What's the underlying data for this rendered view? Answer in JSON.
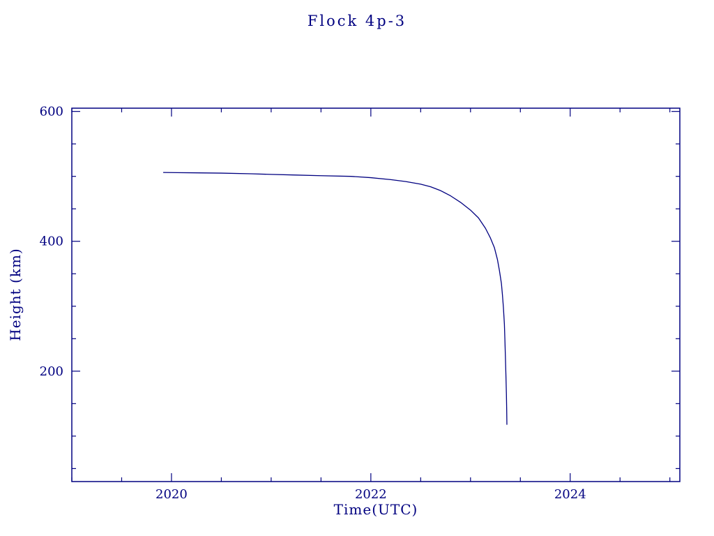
{
  "page": {
    "background": "#ffffff",
    "accent_color": "#000080"
  },
  "chart_data": {
    "type": "line",
    "title": "Flock 4p-3",
    "xlabel": "Time(UTC)",
    "ylabel": "Height (km)",
    "xlim": [
      2019.0,
      2025.1
    ],
    "ylim": [
      30,
      605
    ],
    "x_ticks": [
      2020,
      2022,
      2024
    ],
    "x_minor_step": 0.5,
    "y_ticks": [
      200,
      400,
      600
    ],
    "y_minor_step": 50,
    "grid": false,
    "legend": "none",
    "line_color": "#000080",
    "series": [
      {
        "name": "Flock 4p-3 height",
        "points": [
          [
            2019.92,
            506
          ],
          [
            2020.2,
            505.5
          ],
          [
            2020.5,
            505
          ],
          [
            2020.8,
            504
          ],
          [
            2021.0,
            503
          ],
          [
            2021.25,
            502
          ],
          [
            2021.5,
            501
          ],
          [
            2021.8,
            500
          ],
          [
            2022.0,
            498
          ],
          [
            2022.2,
            495
          ],
          [
            2022.35,
            492
          ],
          [
            2022.5,
            488
          ],
          [
            2022.6,
            484
          ],
          [
            2022.7,
            478
          ],
          [
            2022.8,
            470
          ],
          [
            2022.9,
            460
          ],
          [
            2023.0,
            448
          ],
          [
            2023.08,
            436
          ],
          [
            2023.15,
            420
          ],
          [
            2023.2,
            405
          ],
          [
            2023.24,
            390
          ],
          [
            2023.27,
            372
          ],
          [
            2023.29,
            355
          ],
          [
            2023.31,
            335
          ],
          [
            2023.32,
            318
          ],
          [
            2023.33,
            298
          ],
          [
            2023.34,
            272
          ],
          [
            2023.345,
            248
          ],
          [
            2023.35,
            222
          ],
          [
            2023.355,
            195
          ],
          [
            2023.36,
            165
          ],
          [
            2023.363,
            140
          ],
          [
            2023.365,
            118
          ]
        ]
      }
    ]
  }
}
